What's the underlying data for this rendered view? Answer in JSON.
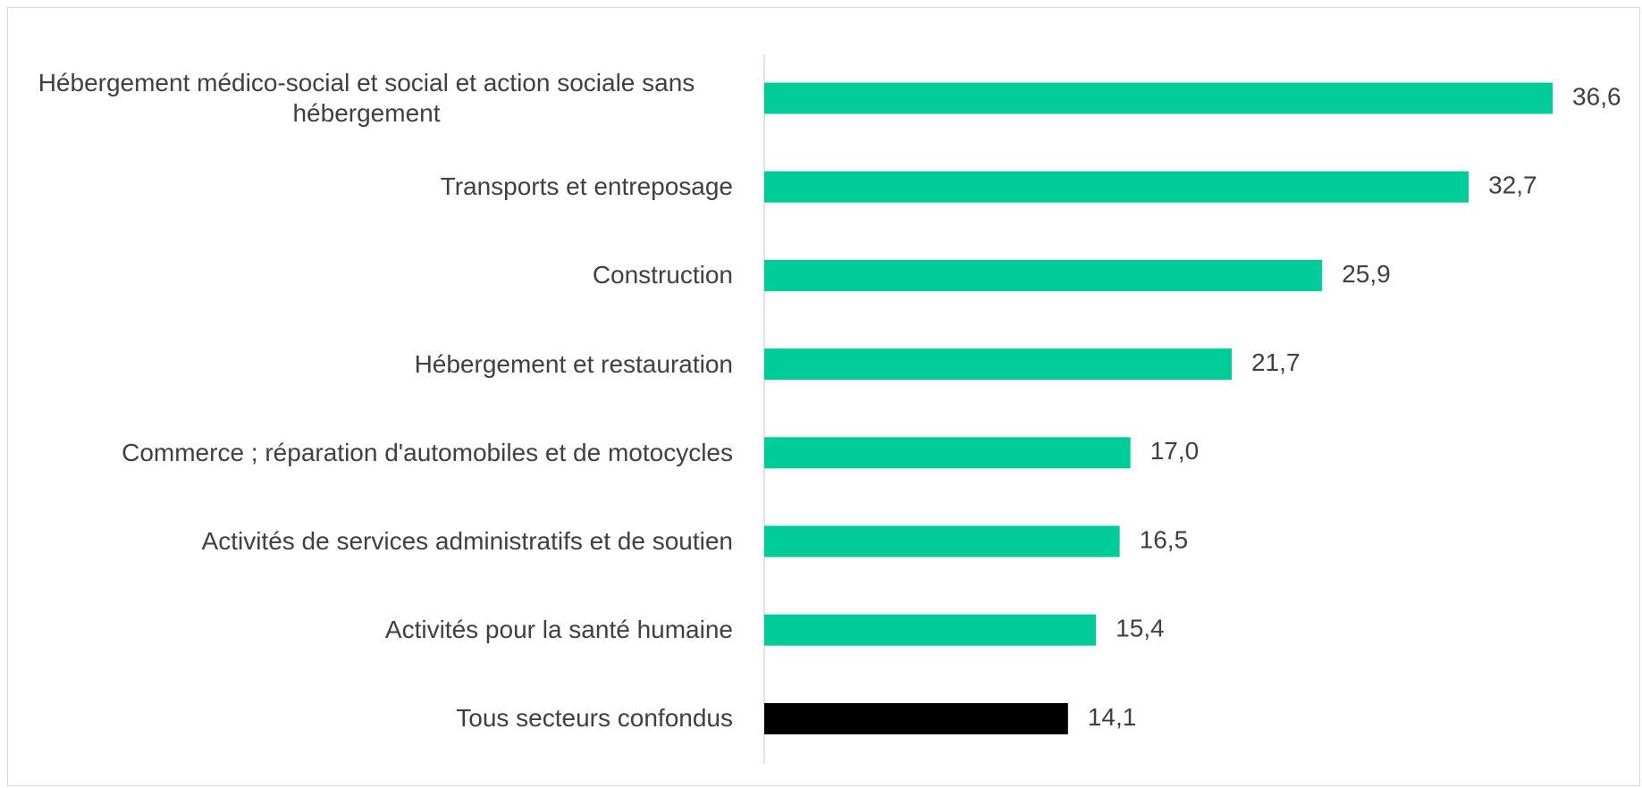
{
  "chart_data": {
    "type": "barh",
    "categories": [
      "Hébergement médico-social et social et action sociale sans hébergement",
      "Transports et entreposage",
      "Construction",
      "Hébergement et restauration",
      "Commerce ; réparation d'automobiles et de motocycles",
      "Activités de services administratifs et de soutien",
      "Activités pour la santé humaine",
      "Tous secteurs confondus"
    ],
    "values": [
      36.6,
      32.7,
      25.9,
      21.7,
      17.0,
      16.5,
      15.4,
      14.1
    ],
    "value_labels": [
      "36,6",
      "32,7",
      "25,9",
      "21,7",
      "17,0",
      "16,5",
      "15,4",
      "14,1"
    ],
    "colors": [
      "#00cc99",
      "#00cc99",
      "#00cc99",
      "#00cc99",
      "#00cc99",
      "#00cc99",
      "#00cc99",
      "#000000"
    ],
    "xlim": [
      0,
      40
    ]
  }
}
